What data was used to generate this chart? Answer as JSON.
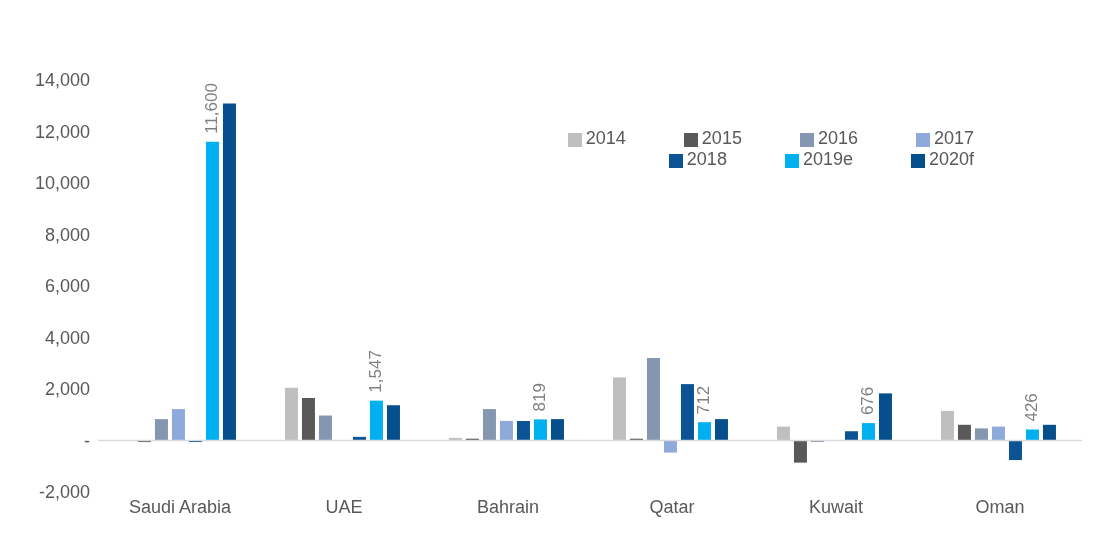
{
  "chart_data": {
    "type": "bar",
    "categories": [
      "Saudi Arabia",
      "UAE",
      "Bahrain",
      "Qatar",
      "Kuwait",
      "Oman"
    ],
    "series": [
      {
        "name": "2014",
        "color": "#bfbfbf",
        "values": [
          0,
          2050,
          100,
          2450,
          540,
          1150
        ]
      },
      {
        "name": "2015",
        "color": "#595959",
        "values": [
          -60,
          1650,
          70,
          70,
          -860,
          610
        ]
      },
      {
        "name": "2016",
        "color": "#8496b0",
        "values": [
          830,
          970,
          1220,
          3200,
          -60,
          470
        ]
      },
      {
        "name": "2017",
        "color": "#8eaadb",
        "values": [
          1220,
          0,
          760,
          -470,
          0,
          540
        ]
      },
      {
        "name": "2018",
        "color": "#0b5394",
        "values": [
          -60,
          140,
          760,
          2190,
          360,
          -760
        ]
      },
      {
        "name": "2019e",
        "color": "#00b0f0",
        "values": [
          11600,
          1547,
          819,
          712,
          676,
          426
        ],
        "value_labels": [
          "11,600",
          "1,547",
          "819",
          "712",
          "676",
          "426"
        ]
      },
      {
        "name": "2020f",
        "color": "#044f8c",
        "values": [
          13090,
          1370,
          830,
          830,
          1830,
          610
        ]
      }
    ],
    "ylim": [
      -2000,
      14000
    ],
    "yticks": [
      {
        "value": -2000,
        "label": "-2,000"
      },
      {
        "value": 0,
        "label": "-"
      },
      {
        "value": 2000,
        "label": "2,000"
      },
      {
        "value": 4000,
        "label": "4,000"
      },
      {
        "value": 6000,
        "label": "6,000"
      },
      {
        "value": 8000,
        "label": "8,000"
      },
      {
        "value": 10000,
        "label": "10,000"
      },
      {
        "value": 12000,
        "label": "12,000"
      },
      {
        "value": 14000,
        "label": "14,000"
      }
    ],
    "ref_lines": [
      {
        "axis": "y",
        "value": 0,
        "color": "#d9d9d9"
      }
    ],
    "grid": false,
    "legend": "top right"
  }
}
